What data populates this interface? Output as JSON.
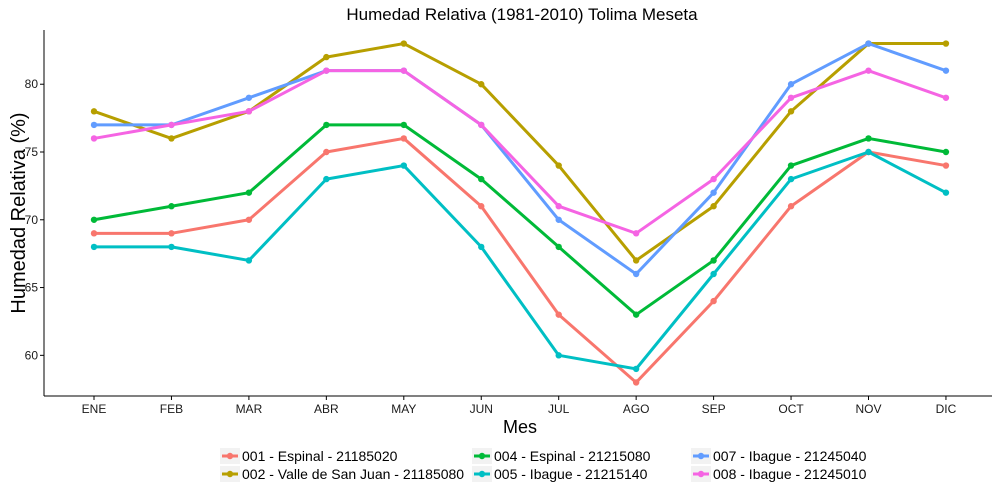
{
  "chart_data": {
    "type": "line",
    "title": "Humedad Relativa (1981-2010)  Tolima Meseta",
    "xlabel": "Mes",
    "ylabel": "Humedad Relativa  (%)",
    "categories": [
      "ENE",
      "FEB",
      "MAR",
      "ABR",
      "MAY",
      "JUN",
      "JUL",
      "AGO",
      "SEP",
      "OCT",
      "NOV",
      "DIC"
    ],
    "ylim": [
      57,
      84
    ],
    "yticks": [
      60,
      65,
      70,
      75,
      80
    ],
    "grid": false,
    "legend_position": "bottom",
    "series": [
      {
        "name": "001 - Espinal - 21185020",
        "color": "#F8766D",
        "values": [
          69,
          69,
          70,
          75,
          76,
          71,
          63,
          58,
          64,
          71,
          75,
          74
        ]
      },
      {
        "name": "002 - Valle de San Juan - 21185080",
        "color": "#B79F00",
        "values": [
          78,
          76,
          78,
          82,
          83,
          80,
          74,
          67,
          71,
          78,
          83,
          83
        ]
      },
      {
        "name": "004 - Espinal - 21215080",
        "color": "#00BA38",
        "values": [
          70,
          71,
          72,
          77,
          77,
          73,
          68,
          63,
          67,
          74,
          76,
          75
        ]
      },
      {
        "name": "005 - Ibague - 21215140",
        "color": "#00BFC4",
        "values": [
          68,
          68,
          67,
          73,
          74,
          68,
          60,
          59,
          66,
          73,
          75,
          72
        ]
      },
      {
        "name": "007 - Ibague - 21245040",
        "color": "#619CFF",
        "values": [
          77,
          77,
          79,
          81,
          81,
          77,
          70,
          66,
          72,
          80,
          83,
          81
        ]
      },
      {
        "name": "008 - Ibague - 21245010",
        "color": "#F564E3",
        "values": [
          76,
          77,
          78,
          81,
          81,
          77,
          71,
          69,
          73,
          79,
          81,
          79
        ]
      }
    ]
  }
}
